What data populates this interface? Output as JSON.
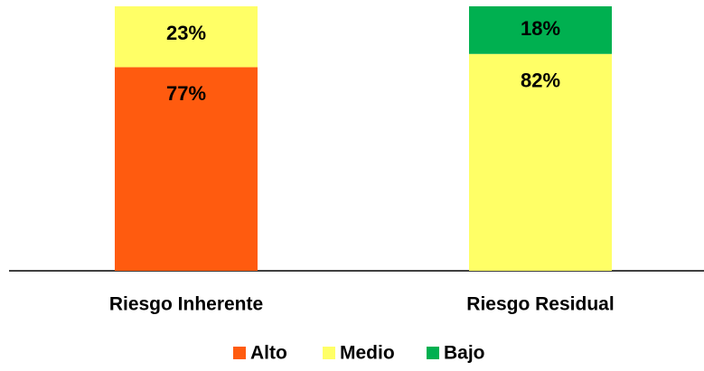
{
  "chart_data": {
    "type": "stacked_bar",
    "categories": [
      "Riesgo Inherente",
      "Riesgo Residual"
    ],
    "series": [
      {
        "name": "Alto",
        "color": "#ff5b0f",
        "values": [
          77,
          null
        ],
        "value_labels": [
          "77%",
          null
        ]
      },
      {
        "name": "Medio",
        "color": "#ffff66",
        "values": [
          23,
          82
        ],
        "value_labels": [
          "23%",
          "82%"
        ]
      },
      {
        "name": "Bajo",
        "color": "#00b050",
        "values": [
          null,
          18
        ],
        "value_labels": [
          null,
          "18%"
        ]
      }
    ],
    "ylim": [
      0,
      100
    ],
    "legend": "bottom"
  }
}
